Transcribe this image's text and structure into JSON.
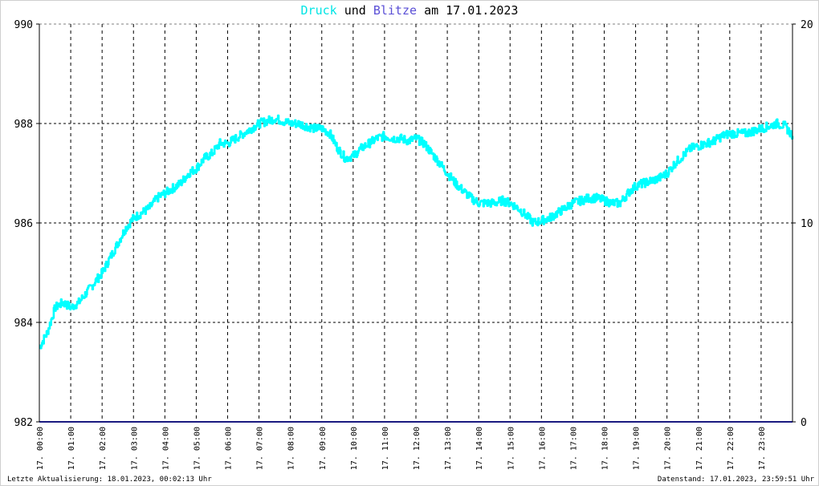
{
  "title": {
    "series1": "Druck",
    "word": "und",
    "series2": "Blitze",
    "date_prefix": "am",
    "date": "17.01.2023"
  },
  "footer": {
    "left": "Letzte Aktualisierung: 18.01.2023, 00:02:13 Uhr",
    "right": "Datenstand: 17.01.2023, 23:59:51 Uhr"
  },
  "colors": {
    "druck": "#00ffff",
    "blitze": "#1a1a80",
    "grid": "#000000",
    "axis": "#000000"
  },
  "chart_data": {
    "type": "line",
    "x_tick_labels": [
      "17. 00:00",
      "17. 01:00",
      "17. 02:00",
      "17. 03:00",
      "17. 04:00",
      "17. 05:00",
      "17. 06:00",
      "17. 07:00",
      "17. 08:00",
      "17. 09:00",
      "17. 10:00",
      "17. 11:00",
      "17. 12:00",
      "17. 13:00",
      "17. 14:00",
      "17. 15:00",
      "17. 16:00",
      "17. 17:00",
      "17. 18:00",
      "17. 19:00",
      "17. 20:00",
      "17. 21:00",
      "17. 22:00",
      "17. 23:00"
    ],
    "xlim_hours": [
      0,
      24
    ],
    "y_left": {
      "ticks": [
        "990",
        "988",
        "986",
        "984",
        "982"
      ],
      "lim": [
        982,
        990
      ]
    },
    "y_right": {
      "ticks": [
        "20",
        "10",
        "0"
      ],
      "lim": [
        0,
        20
      ]
    },
    "grid": true,
    "series": [
      {
        "name": "Druck",
        "axis": "left",
        "x_hours": [
          0,
          0.25,
          0.5,
          0.75,
          1,
          1.25,
          1.5,
          1.75,
          2,
          2.25,
          2.5,
          2.75,
          3,
          3.25,
          3.5,
          3.75,
          4,
          4.25,
          4.5,
          4.75,
          5,
          5.25,
          5.5,
          5.75,
          6,
          6.25,
          6.5,
          6.75,
          7,
          7.25,
          7.5,
          7.75,
          8,
          8.25,
          8.5,
          8.75,
          9,
          9.25,
          9.5,
          9.75,
          10,
          10.25,
          10.5,
          10.75,
          11,
          11.25,
          11.5,
          11.75,
          12,
          12.25,
          12.5,
          12.75,
          13,
          13.25,
          13.5,
          13.75,
          14,
          14.25,
          14.5,
          14.75,
          15,
          15.25,
          15.5,
          15.75,
          16,
          16.25,
          16.5,
          16.75,
          17,
          17.25,
          17.5,
          17.75,
          18,
          18.25,
          18.5,
          18.75,
          19,
          19.25,
          19.5,
          19.75,
          20,
          20.25,
          20.5,
          20.75,
          21,
          21.25,
          21.5,
          21.75,
          22,
          22.25,
          22.5,
          22.75,
          23,
          23.25,
          23.5,
          23.75,
          24
        ],
        "values": [
          983.5,
          983.8,
          984.3,
          984.4,
          984.3,
          984.4,
          984.6,
          984.8,
          985.0,
          985.3,
          985.6,
          985.9,
          986.1,
          986.2,
          986.3,
          986.5,
          986.6,
          986.7,
          986.8,
          987.0,
          987.1,
          987.3,
          987.4,
          987.6,
          987.6,
          987.7,
          987.8,
          987.9,
          988.0,
          988.05,
          988.1,
          988.05,
          988.0,
          988.0,
          987.95,
          987.9,
          987.9,
          987.8,
          987.5,
          987.3,
          987.35,
          987.5,
          987.6,
          987.7,
          987.75,
          987.7,
          987.7,
          987.65,
          987.7,
          987.6,
          987.4,
          987.2,
          987.0,
          986.8,
          986.65,
          986.5,
          986.4,
          986.4,
          986.4,
          986.45,
          986.4,
          986.3,
          986.15,
          986.0,
          986.05,
          986.1,
          986.2,
          986.3,
          986.4,
          986.45,
          986.5,
          986.5,
          986.45,
          986.4,
          986.4,
          986.6,
          986.75,
          986.8,
          986.85,
          986.9,
          987.0,
          987.2,
          987.35,
          987.5,
          987.55,
          987.6,
          987.65,
          987.75,
          987.8,
          987.8,
          987.8,
          987.85,
          987.9,
          987.95,
          988.0,
          987.95,
          987.75
        ]
      },
      {
        "name": "Blitze",
        "axis": "right",
        "x_hours": [
          0,
          24
        ],
        "values": [
          0,
          0
        ]
      }
    ]
  }
}
